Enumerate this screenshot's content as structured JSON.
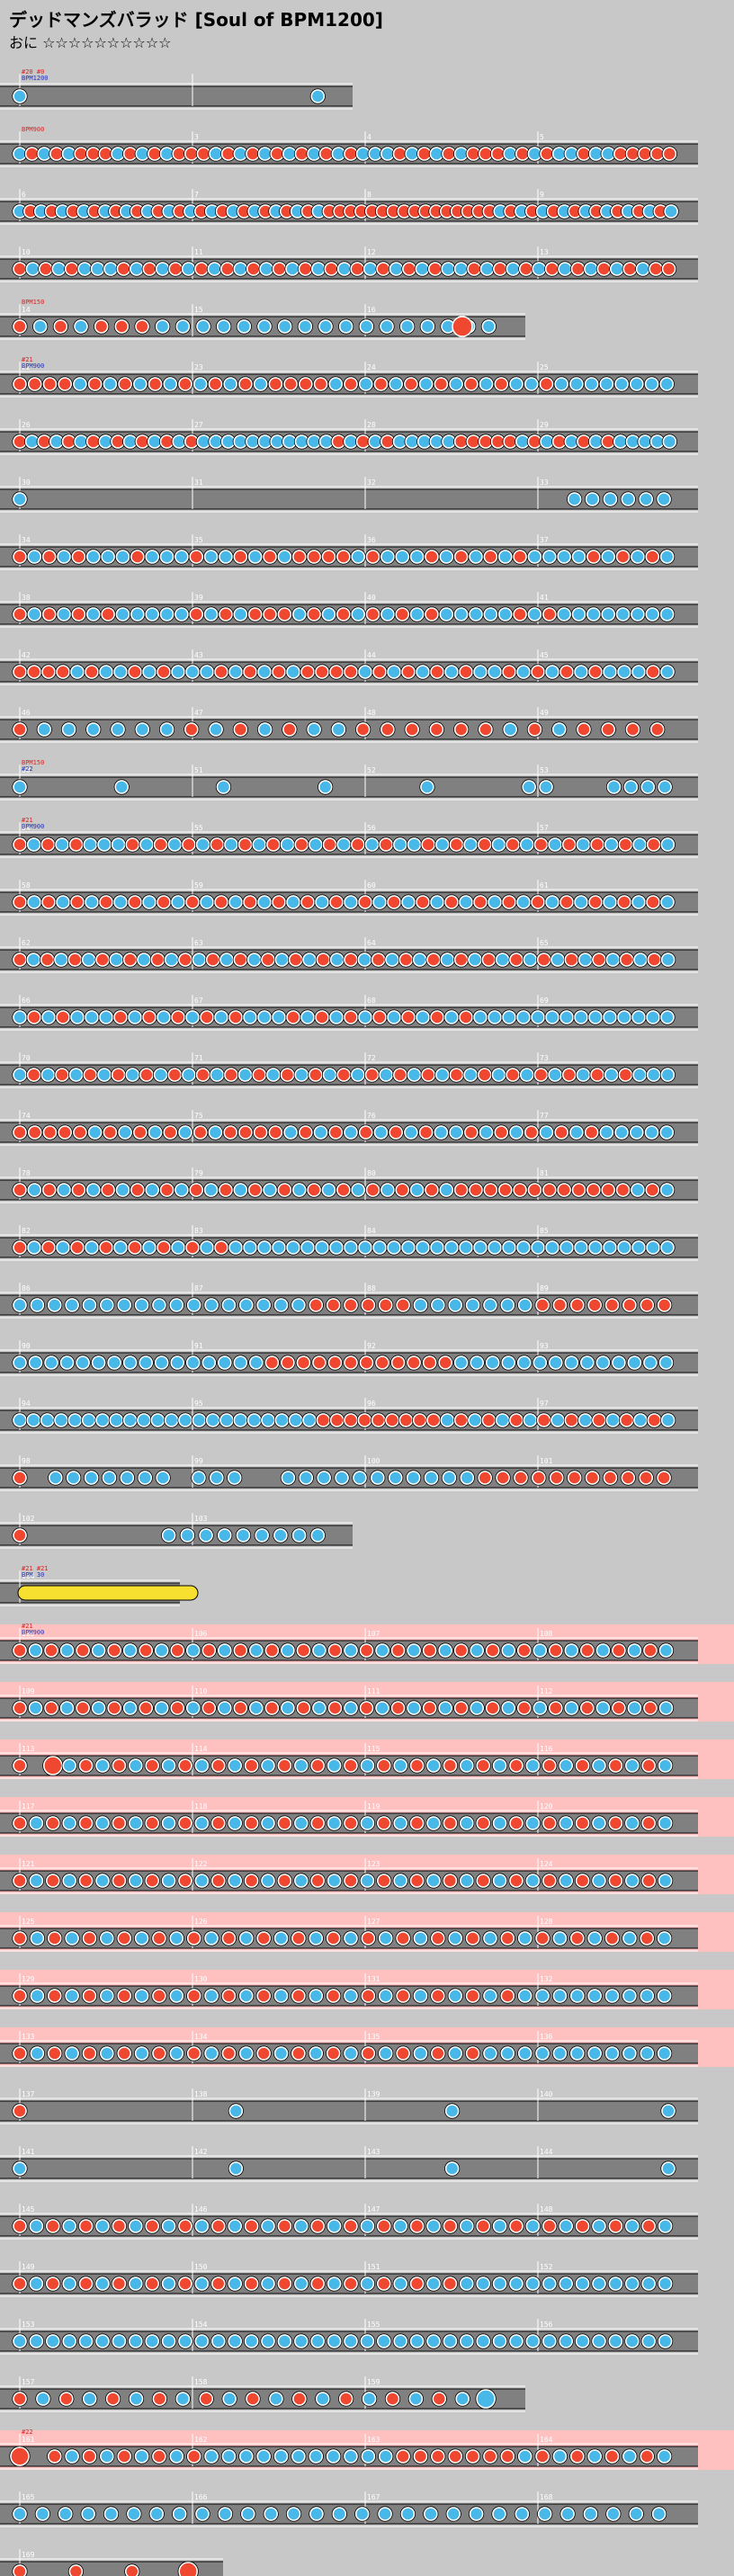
{
  "header": {
    "title": "デッドマンズバラッド [Soul of BPM1200]",
    "difficulty": "おに ☆☆☆☆☆☆☆☆☆☆"
  },
  "colors": {
    "don": "#f04830",
    "ka": "#48b8e8",
    "lane": "#808080",
    "gogo": "#ffc0c0",
    "roll": "#f8e030"
  },
  "rows": [
    {
      "bars": [
        null,
        null
      ],
      "notes": "k...............k",
      "cmds": [
        "#20 #0",
        "BPM1200"
      ],
      "width": 2
    },
    {
      "bars": [
        null,
        "3",
        "4",
        "5"
      ],
      "notes": "kdkdkdddkdkdkdddkdkdkdkdkdkdkkkdkdkdkdddkdkdkkdkkddddd",
      "cmds": [
        "BPM900"
      ]
    },
    {
      "bars": [
        "6",
        "7",
        "8",
        "9"
      ],
      "notes": "kdkdkdkdkdkdkdkdkdkdkdkdkdkdkddddddddddddddddkdkdkdkdkdkdkdkdk"
    },
    {
      "bars": [
        "10",
        "11",
        "12",
        "13"
      ],
      "notes": "dkdkdkkkdkdkdkdkdkdkdkdkdkdkdkdkdkkdkdkdkdkdkdkdkdd"
    },
    {
      "bars": [
        "14",
        "15",
        "16",
        null
      ],
      "notes": "dkdkdddkkkkkkkkkkkkkkkkk",
      "cmds": [
        "BPM150"
      ],
      "width": 3,
      "bigDon": true
    },
    {
      "bars": [
        "22",
        "23",
        "24",
        "25"
      ],
      "notes": "ddddkdkdkdkdkdkdkddddkdkdkdkdkdkdkkdkkkkkkkk",
      "cmds": [
        "#21",
        "BPM900"
      ]
    },
    {
      "bars": [
        "26",
        "27",
        "28",
        "29"
      ],
      "notes": "dkdkdkdkdkdkdkdkkkkkkkkkkkdkdkdkkkkkdddddkdkdkdkdkkkkk"
    },
    {
      "bars": [
        "30",
        "31",
        "32",
        "33"
      ],
      "notes": "k..............................kkkkkk",
      "sparse": true
    },
    {
      "bars": [
        "34",
        "35",
        "36",
        "37"
      ],
      "notes": "dkdkdkkkdkkkdkkdkdkddddkdkkkdkdkdkdkkkkdkdkdk"
    },
    {
      "bars": [
        "38",
        "39",
        "40",
        "41"
      ],
      "notes": "dkdkdkdkkkkkdkdkdddkdkdkdkdkdkkkkkdkdkkkkkkkk"
    },
    {
      "bars": [
        "42",
        "43",
        "44",
        "45"
      ],
      "notes": "ddddkdkkdkdkkkdkdkdkddddkdkdkdkdkkdkdkdkdkkkdk"
    },
    {
      "bars": [
        "46",
        "47",
        "48",
        "49"
      ],
      "notes": "dkkkkkkdkdkdkkddddddkdkdddd",
      "bigDon": true
    },
    {
      "bars": [
        "50",
        "51",
        "52",
        "53"
      ],
      "notes": "k.....k.....k.....k.....k.....kk...kkkk",
      "cmds": [
        "BPM150",
        "#22"
      ],
      "sparse": true
    },
    {
      "bars": [
        "54",
        "55",
        "56",
        "57"
      ],
      "notes": "dkdkdkkkdkdkdkdkdkdkdkdkdkdkkdkdkdkdkdkdkdkdkdk",
      "cmds": [
        "#21",
        "BPM900"
      ]
    },
    {
      "bars": [
        "58",
        "59",
        "60",
        "61"
      ],
      "notes": "dkdkdkdkdkdkdkdkdkdkdkdkdkdkdkdkdkdkdkdkdkdkdk"
    },
    {
      "bars": [
        "62",
        "63",
        "64",
        "65"
      ],
      "notes": "dkdkdkdkdkdkdkdkdkdkdkdkdkdkdkdkdkdkdkdkdkdkdkdk"
    },
    {
      "bars": [
        "66",
        "67",
        "68",
        "69"
      ],
      "notes": "kdkdkkkdkdkdkdkdkkkdkdkdkdkdkdkdkkkkkkkkkkkkkk"
    },
    {
      "bars": [
        "70",
        "71",
        "72",
        "73"
      ],
      "notes": "kdkdkdkdkdkdkdkdkdkdkdkdkdkdkdkdkdkdkdkdkdkdkkk"
    },
    {
      "bars": [
        "74",
        "75",
        "76",
        "77"
      ],
      "notes": "dddddkdkdkdkdkddddkdkdkdkdkdkkdkdkdkdkdkkkkk"
    },
    {
      "bars": [
        "78",
        "79",
        "80",
        "81"
      ],
      "notes": "dkdkdkdkdkdkdkdkdkdkdkdkdkdkdkddddddddddddkdk"
    },
    {
      "bars": [
        "82",
        "83",
        "84",
        "85"
      ],
      "notes": "dkdkdkdkdkdkdkdkkkkkkkkkkkkkkkkkkkkkkkkkkkkkkk"
    },
    {
      "bars": [
        "86",
        "87",
        "88",
        "89"
      ],
      "notes": "kkkkkkkkkkkkkkkkkddddddkkkkkkkdddddddd"
    },
    {
      "bars": [
        "90",
        "91",
        "92",
        "93"
      ],
      "notes": "kkkkkkkkkkkkkkkkddddddddddddkkkkkkkkkkkkkk"
    },
    {
      "bars": [
        "94",
        "95",
        "96",
        "97"
      ],
      "notes": "kkkkkkkkkkkkkkkkkkkkkkdddddddddkdkdkdkdkdkdkdkdk"
    },
    {
      "bars": [
        "98",
        "99",
        "100",
        "101"
      ],
      "notes": "d.kkkkkkk.kkk..kkkkkkkkkkkddddddddddd"
    },
    {
      "bars": [
        "102",
        "103"
      ],
      "notes": "d.......kkkkkkkkk",
      "width": 2
    },
    {
      "bars": [
        "104"
      ],
      "notes": "",
      "roll": true,
      "cmds": [
        "#21 #21",
        "BPM 30"
      ],
      "width": 1
    },
    {
      "bars": [
        "105",
        "106",
        "107",
        "108"
      ],
      "notes": "dkdkdkdkdkdkdkdkdkdkdkdkdkdkdkdkdkdkdkdkdk",
      "gogo": true,
      "cmds": [
        "#21",
        "BPM900"
      ]
    },
    {
      "bars": [
        "109",
        "110",
        "111",
        "112"
      ],
      "notes": "dkdkdkdkdkdkdkdkdkdkdkdkdkdkdkdkdkdkdkdkdk",
      "gogo": true
    },
    {
      "bars": [
        "113",
        "114",
        "115",
        "116"
      ],
      "notes": "d.Dkdkdkdkdkdkdkdkdkdkdkdkdkdkdkdkdkdkdk",
      "gogo": true
    },
    {
      "bars": [
        "117",
        "118",
        "119",
        "120"
      ],
      "notes": "dkdkdkdkdkdkdkdkdkdkdkdkdkdkdkdkdkdkdkdk",
      "gogo": true
    },
    {
      "bars": [
        "121",
        "122",
        "123",
        "124"
      ],
      "notes": "dkdkdkdkdkdkdkdkdkdkdkdkdkdkdkdkdkdkdkdk",
      "gogo": true
    },
    {
      "bars": [
        "125",
        "126",
        "127",
        "128"
      ],
      "notes": "dkdkdkdkdkdkdkdkdkdkdkdkdkdkdkdkdkdkdk",
      "gogo": true
    },
    {
      "bars": [
        "129",
        "130",
        "131",
        "132"
      ],
      "notes": "dkdkdkdkdkdkdkdkdkdkdkdkdkdkdkkkkkkkkk",
      "gogo": true
    },
    {
      "bars": [
        "133",
        "134",
        "135",
        "136"
      ],
      "notes": "dkdkdkdkdkdkdkdkdkdkdkdkdkdkkkkkkkkkkk",
      "gogo": true
    },
    {
      "bars": [
        "137",
        "138",
        "139",
        "140"
      ],
      "notes": "d...............k...............k...............k",
      "sparse": true
    },
    {
      "bars": [
        "141",
        "142",
        "143",
        "144"
      ],
      "notes": "k...............k...............k...............k",
      "sparse": true
    },
    {
      "bars": [
        "145",
        "146",
        "147",
        "148"
      ],
      "notes": "dkdkdkdkdkdkdkdkdkdkdkdkdkdkdkdkdkdkdkdk"
    },
    {
      "bars": [
        "149",
        "150",
        "151",
        "152"
      ],
      "notes": "dkdkdkdkdkdkdkdkdkdkdkdkdkdkkkkkkkkkkkkk"
    },
    {
      "bars": [
        "153",
        "154",
        "155",
        "156"
      ],
      "notes": "kkkkkkkkkkkkkkkkkkkkkkkkkkkkkkkkkkkkkkkk"
    },
    {
      "bars": [
        "157",
        "158",
        "159",
        "160"
      ],
      "notes": "dkdkdkdkdkdkdkdkdkdkK",
      "width": 3
    },
    {
      "bars": [
        "161",
        "162",
        "163",
        "164"
      ],
      "notes": "D.dkdkdkdkdkkkkkkkkkkkdddddddkdkdkdkdk",
      "gogo": true,
      "cmds": [
        "#22"
      ]
    },
    {
      "bars": [
        "165",
        "166",
        "167",
        "168"
      ],
      "notes": "kkkkkkkkkkkkkkkkkkkkkkkkkkkkk"
    },
    {
      "bars": [
        "169"
      ],
      "notes": "d..d..d..D",
      "width": 1.25
    }
  ]
}
